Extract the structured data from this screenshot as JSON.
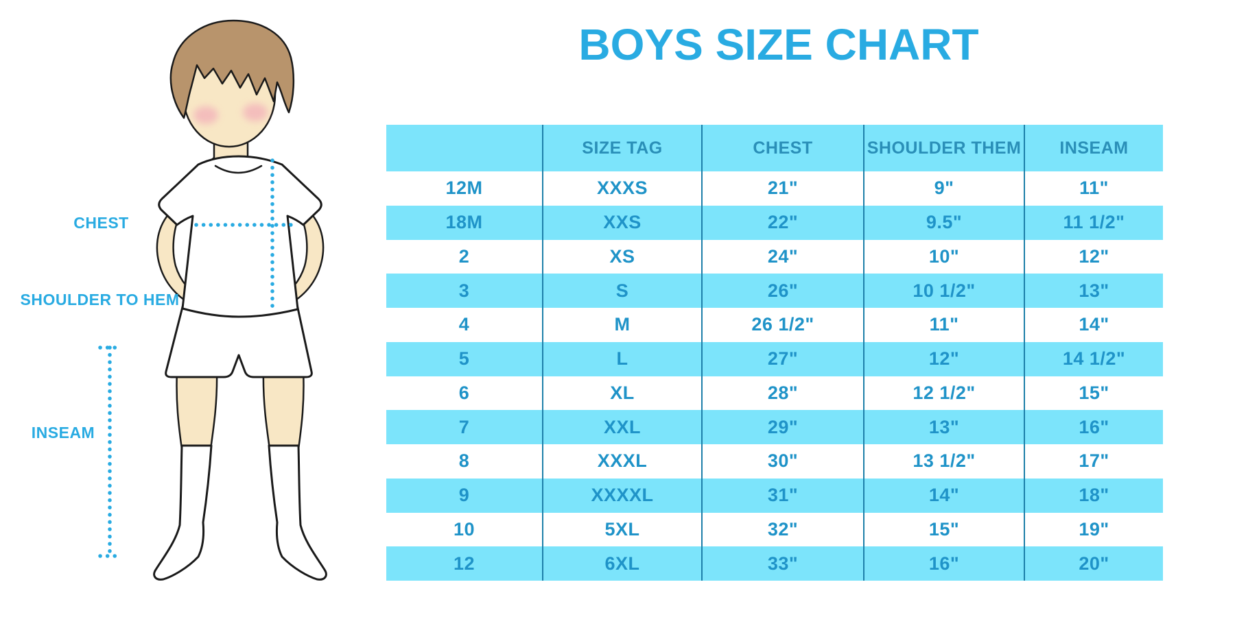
{
  "title": "BOYS SIZE CHART",
  "illustration": {
    "figure": "boy-cartoon-front-facing",
    "labels": {
      "chest": "CHEST",
      "shoulder_to_hem": "SHOULDER TO HEM",
      "inseam": "INSEAM"
    }
  },
  "colors": {
    "accent": "#29ABE2",
    "table_band": "#7CE4FB",
    "cell_text": "#1F93C8",
    "header_text": "#2A8FB8",
    "divider": "#1D7FA9",
    "skin": "#F8E7C5",
    "hair": "#B8946C",
    "blush": "#F2A8B8",
    "outline": "#1A1A1A"
  },
  "chart_data": {
    "type": "table",
    "title": "BOYS SIZE CHART",
    "columns": [
      "",
      "SIZE TAG",
      "CHEST",
      "SHOULDER THEM",
      "INSEAM"
    ],
    "rows": [
      [
        "12M",
        "XXXS",
        "21\"",
        "9\"",
        "11\""
      ],
      [
        "18M",
        "XXS",
        "22\"",
        "9.5\"",
        "11 1/2\""
      ],
      [
        "2",
        "XS",
        "24\"",
        "10\"",
        "12\""
      ],
      [
        "3",
        "S",
        "26\"",
        "10 1/2\"",
        "13\""
      ],
      [
        "4",
        "M",
        "26 1/2\"",
        "11\"",
        "14\""
      ],
      [
        "5",
        "L",
        "27\"",
        "12\"",
        "14 1/2\""
      ],
      [
        "6",
        "XL",
        "28\"",
        "12 1/2\"",
        "15\""
      ],
      [
        "7",
        "XXL",
        "29\"",
        "13\"",
        "16\""
      ],
      [
        "8",
        "XXXL",
        "30\"",
        "13 1/2\"",
        "17\""
      ],
      [
        "9",
        "XXXXL",
        "31\"",
        "14\"",
        "18\""
      ],
      [
        "10",
        "5XL",
        "32\"",
        "15\"",
        "19\""
      ],
      [
        "12",
        "6XL",
        "33\"",
        "16\"",
        "20\""
      ]
    ],
    "layout": {
      "row_striping": "white / light-cyan alternating, header band cyan",
      "grid": "vertical column dividers only"
    }
  }
}
